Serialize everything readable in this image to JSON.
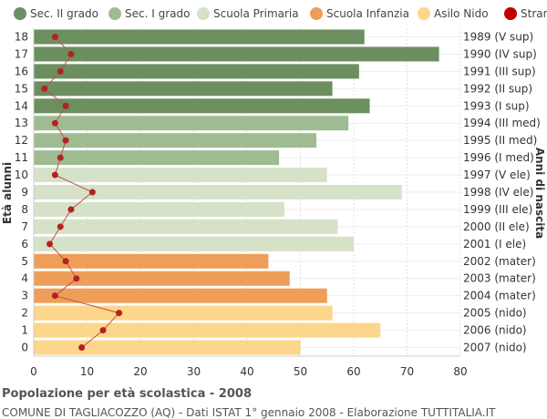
{
  "chart_data": {
    "type": "bar",
    "orientation": "horizontal",
    "ylabel_left": "Età alunni",
    "ylabel_right": "Anni di nascita",
    "xlim": [
      0,
      80
    ],
    "xticks": [
      0,
      10,
      20,
      30,
      40,
      50,
      60,
      70,
      80
    ],
    "grid": true,
    "legend": [
      {
        "name": "Sec. II grado",
        "color": "#6b8f5e"
      },
      {
        "name": "Sec. I grado",
        "color": "#9fbb92"
      },
      {
        "name": "Scuola Primaria",
        "color": "#d5e2c8"
      },
      {
        "name": "Scuola Infanzia",
        "color": "#ee9e58"
      },
      {
        "name": "Asilo Nido",
        "color": "#fcd68a"
      },
      {
        "name": "Stranieri",
        "color": "#c00000"
      }
    ],
    "categories": [
      "18",
      "17",
      "16",
      "15",
      "14",
      "13",
      "12",
      "11",
      "10",
      "9",
      "8",
      "7",
      "6",
      "5",
      "4",
      "3",
      "2",
      "1",
      "0"
    ],
    "birth_labels": [
      "1989 (V sup)",
      "1990 (IV sup)",
      "1991 (III sup)",
      "1992 (II sup)",
      "1993 (I sup)",
      "1994 (III med)",
      "1995 (II med)",
      "1996 (I med)",
      "1997 (V ele)",
      "1998 (IV ele)",
      "1999 (III ele)",
      "2000 (II ele)",
      "2001 (I ele)",
      "2002 (mater)",
      "2003 (mater)",
      "2004 (mater)",
      "2005 (nido)",
      "2006 (nido)",
      "2007 (nido)"
    ],
    "values": [
      62,
      76,
      61,
      56,
      63,
      59,
      53,
      46,
      55,
      69,
      47,
      57,
      60,
      44,
      48,
      55,
      56,
      65,
      50
    ],
    "groups": [
      0,
      0,
      0,
      0,
      0,
      1,
      1,
      1,
      2,
      2,
      2,
      2,
      2,
      3,
      3,
      3,
      4,
      4,
      4
    ],
    "stranieri": [
      4,
      7,
      5,
      2,
      6,
      4,
      6,
      5,
      4,
      11,
      7,
      5,
      3,
      6,
      8,
      4,
      16,
      13,
      9
    ],
    "stranieri_color": "#b22222"
  },
  "footer": {
    "title": "Popolazione per età scolastica - 2008",
    "subtitle": "COMUNE DI TAGLIACOZZO (AQ) - Dati ISTAT 1° gennaio 2008 - Elaborazione TUTTITALIA.IT"
  }
}
